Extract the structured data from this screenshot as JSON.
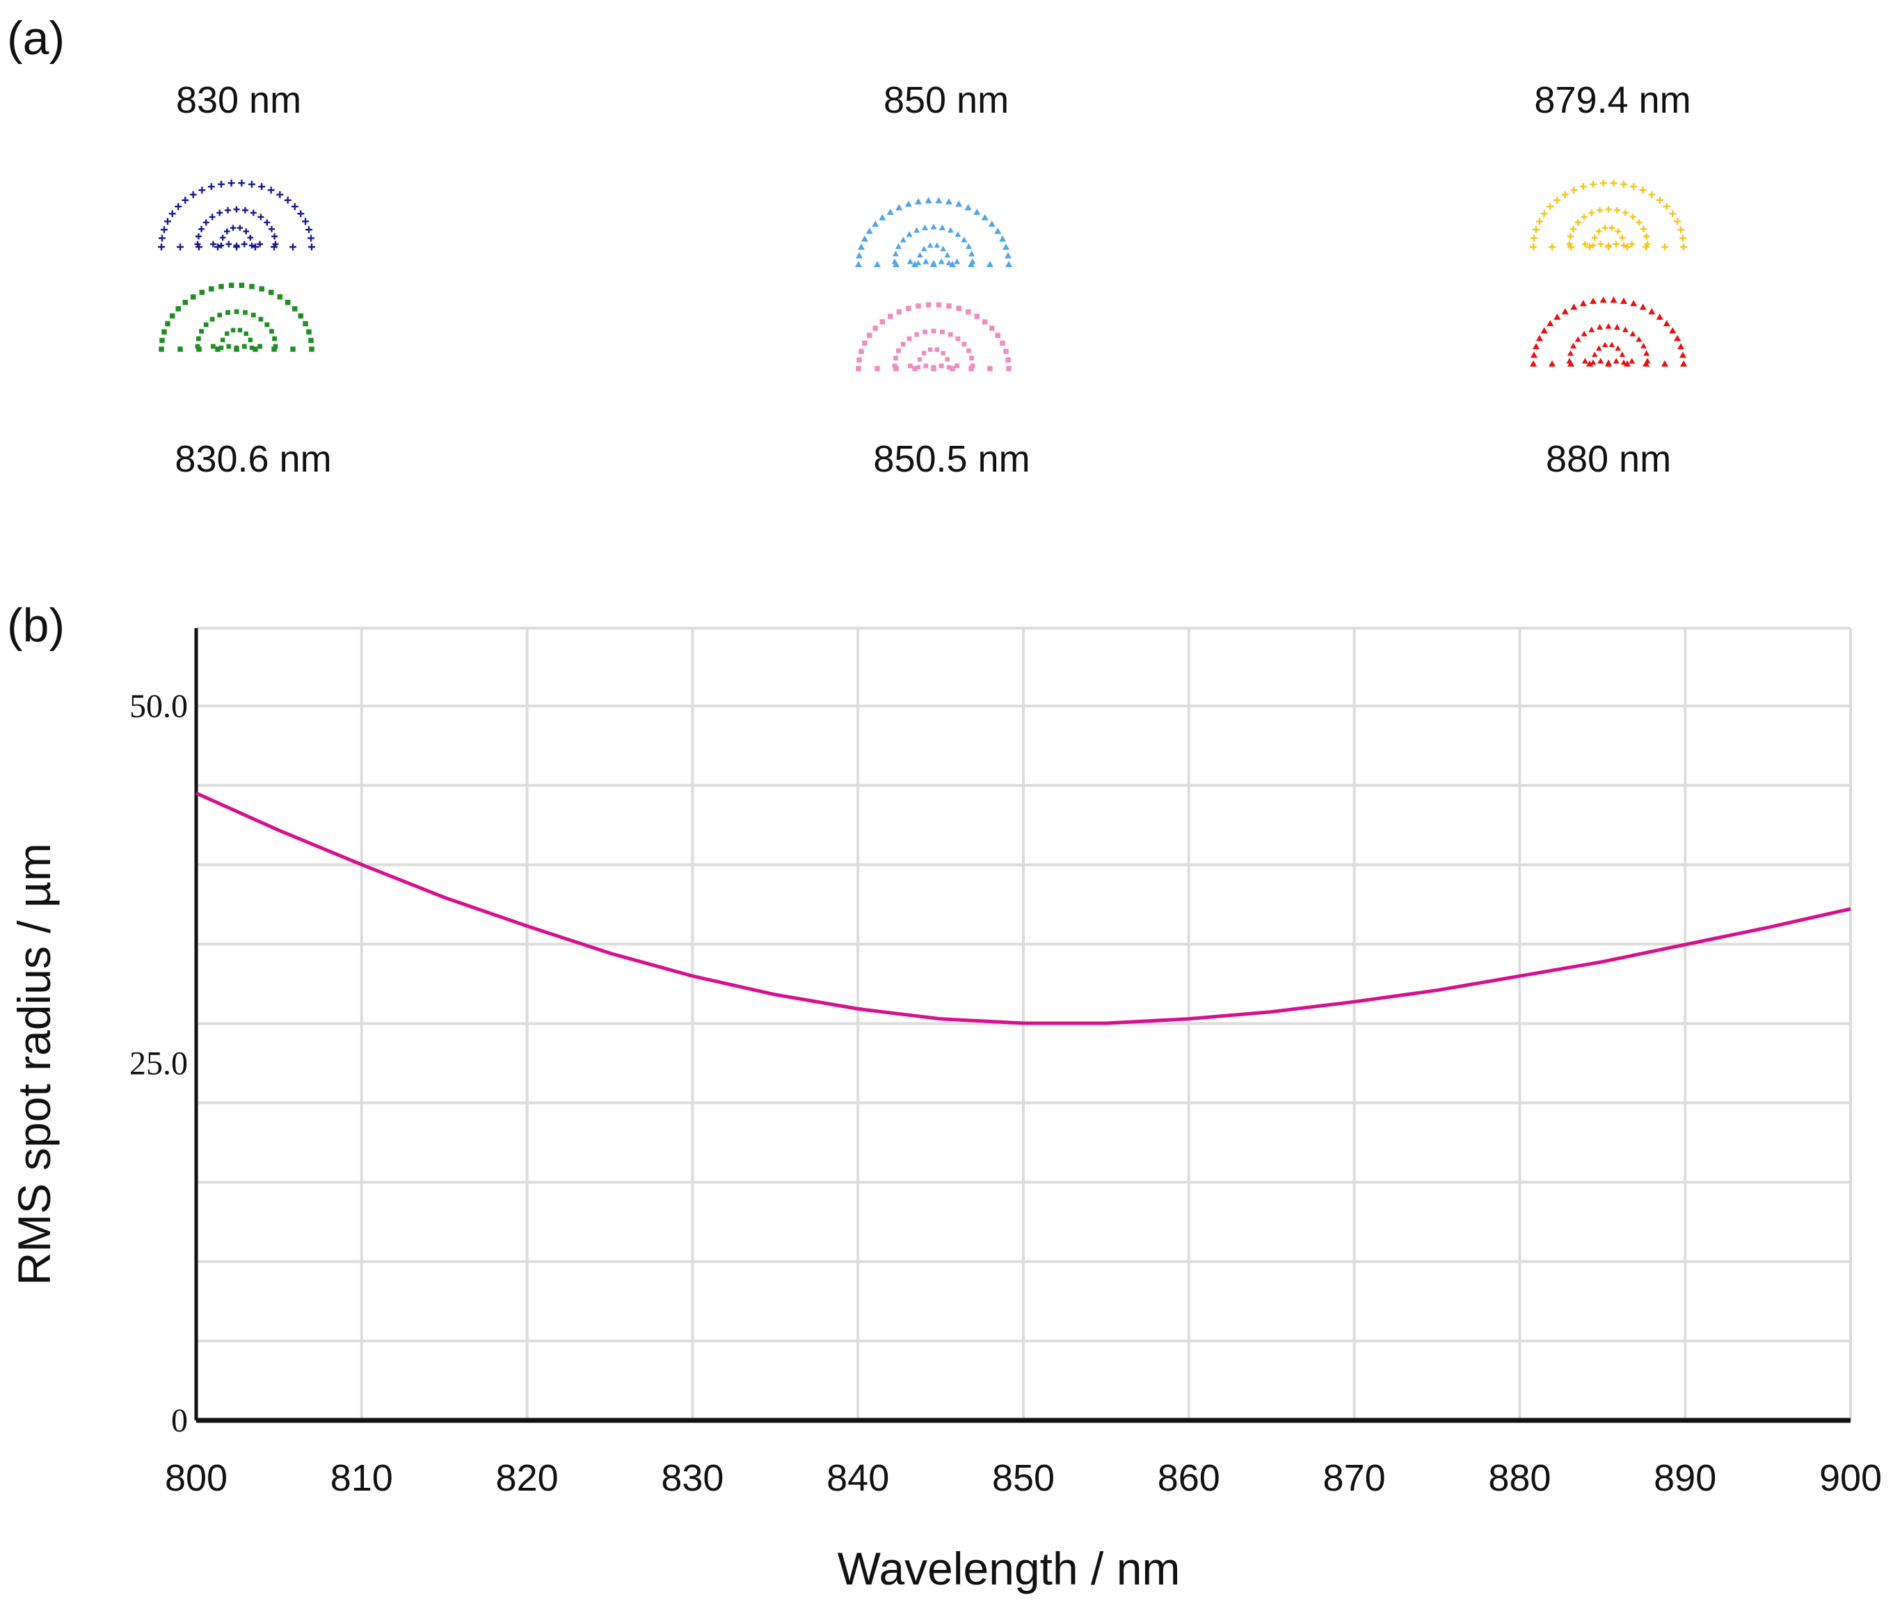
{
  "panel_a": {
    "label": "(a)",
    "spot_diagrams": [
      {
        "top_label": "830 nm",
        "bottom_label": "830.6 nm",
        "top_color": "#1a1a8c",
        "bottom_color": "#1f8f1f",
        "top_marker": "plus",
        "bottom_marker": "square"
      },
      {
        "top_label": "850 nm",
        "bottom_label": "850.5 nm",
        "top_color": "#4da6e8",
        "bottom_color": "#f08cc0",
        "top_marker": "triangle",
        "bottom_marker": "square"
      },
      {
        "top_label": "879.4 nm",
        "bottom_label": "880 nm",
        "top_color": "#f5c518",
        "bottom_color": "#e81010",
        "top_marker": "plus",
        "bottom_marker": "triangle"
      }
    ]
  },
  "panel_b": {
    "label": "(b)"
  },
  "chart_data": {
    "type": "line",
    "xlabel": "Wavelength / nm",
    "ylabel": "RMS spot radius / µm",
    "xlim": [
      800,
      900
    ],
    "ylim": [
      0,
      50
    ],
    "x_ticks": [
      "800",
      "810",
      "820",
      "830",
      "840",
      "850",
      "860",
      "870",
      "880",
      "890",
      "900"
    ],
    "y_ticks": [
      "0",
      "25.0",
      "50.0"
    ],
    "grid": true,
    "series": [
      {
        "color": "#d6108e",
        "x": [
          800,
          805,
          810,
          815,
          820,
          825,
          830,
          835,
          840,
          845,
          850,
          855,
          860,
          865,
          870,
          875,
          880,
          885,
          890,
          895,
          900
        ],
        "y": [
          43.9,
          41.3,
          38.9,
          36.6,
          34.6,
          32.7,
          31.1,
          29.8,
          28.8,
          28.1,
          27.8,
          27.8,
          28.1,
          28.6,
          29.3,
          30.1,
          31.1,
          32.1,
          33.3,
          34.5,
          35.8
        ]
      }
    ]
  }
}
